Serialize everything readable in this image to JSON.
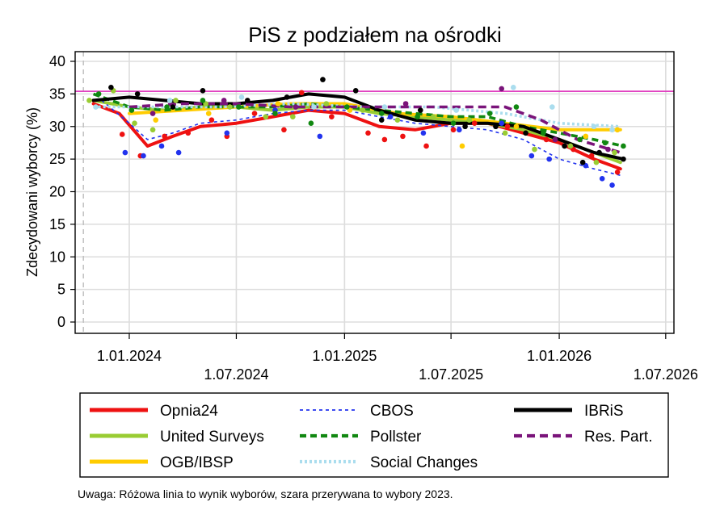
{
  "chart_data": {
    "type": "scatter",
    "title": "PiS z podziałem na ośrodki",
    "ylabel": "Zdecydowani wyborcy (%)",
    "xlabel": "",
    "ylim": [
      0,
      40
    ],
    "xlim": [
      "2023-10-01",
      "2026-07-15"
    ],
    "yticks": [
      0,
      5,
      10,
      15,
      20,
      25,
      30,
      35,
      40
    ],
    "xticks": [
      {
        "date": "2024-01-01",
        "label": "1.01.2024"
      },
      {
        "date": "2024-07-01",
        "label": "1.07.2024"
      },
      {
        "date": "2025-01-01",
        "label": "1.01.2025"
      },
      {
        "date": "2025-07-01",
        "label": "1.07.2025"
      },
      {
        "date": "2026-01-01",
        "label": "1.01.2026"
      },
      {
        "date": "2026-07-01",
        "label": "1.07.2026"
      }
    ],
    "grid": true,
    "reference_lines": {
      "election_result": 35.4,
      "election_result_color": "#e040c0",
      "election_date": "2023-10-15",
      "election_date_color": "#c0c0c0"
    },
    "legend_position": "bottom",
    "series": [
      {
        "name": "Opnia24",
        "color": "#ee1111",
        "dash": "solid",
        "trend": [
          [
            "2023-11-01",
            33.5
          ],
          [
            "2023-12-15",
            32
          ],
          [
            "2024-02-01",
            27
          ],
          [
            "2024-03-15",
            28.5
          ],
          [
            "2024-05-01",
            30
          ],
          [
            "2024-07-01",
            30.5
          ],
          [
            "2024-09-01",
            31.5
          ],
          [
            "2024-11-01",
            32.5
          ],
          [
            "2025-01-01",
            32
          ],
          [
            "2025-03-01",
            30
          ],
          [
            "2025-05-01",
            29.5
          ],
          [
            "2025-07-01",
            30.5
          ],
          [
            "2025-09-01",
            30.5
          ],
          [
            "2025-11-01",
            29
          ],
          [
            "2026-01-01",
            27.5
          ],
          [
            "2026-03-01",
            25
          ],
          [
            "2026-04-15",
            23.5
          ]
        ],
        "points": [
          [
            "2023-12-20",
            28.8
          ],
          [
            "2024-01-20",
            25.5
          ],
          [
            "2024-03-01",
            28.5
          ],
          [
            "2024-04-10",
            29
          ],
          [
            "2024-05-20",
            31
          ],
          [
            "2024-06-15",
            28.5
          ],
          [
            "2024-08-01",
            32
          ],
          [
            "2024-09-20",
            29.5
          ],
          [
            "2024-10-20",
            35.2
          ],
          [
            "2024-12-10",
            31.5
          ],
          [
            "2025-02-10",
            29
          ],
          [
            "2025-03-10",
            28
          ],
          [
            "2025-04-10",
            28.5
          ],
          [
            "2025-05-20",
            27
          ],
          [
            "2025-07-05",
            29.5
          ],
          [
            "2025-08-10",
            30.5
          ],
          [
            "2025-10-05",
            30
          ],
          [
            "2025-12-10",
            28
          ],
          [
            "2026-01-25",
            26.5
          ],
          [
            "2026-02-25",
            25.5
          ],
          [
            "2026-04-10",
            23
          ]
        ]
      },
      {
        "name": "United Surveys",
        "color": "#99cc33",
        "dash": "solid",
        "trend": [
          [
            "2023-11-01",
            34
          ],
          [
            "2024-01-01",
            33
          ],
          [
            "2024-03-01",
            32.5
          ],
          [
            "2024-05-01",
            33
          ],
          [
            "2024-07-01",
            33
          ],
          [
            "2024-09-01",
            32.5
          ],
          [
            "2024-11-01",
            33
          ],
          [
            "2025-01-01",
            33
          ],
          [
            "2025-03-01",
            32
          ],
          [
            "2025-05-01",
            31.5
          ],
          [
            "2025-07-01",
            31
          ],
          [
            "2025-09-01",
            30.5
          ],
          [
            "2025-11-01",
            29.5
          ],
          [
            "2026-01-01",
            28
          ],
          [
            "2026-03-01",
            26
          ],
          [
            "2026-04-15",
            24.5
          ]
        ],
        "points": [
          [
            "2023-10-25",
            34
          ],
          [
            "2023-12-05",
            35.5
          ],
          [
            "2024-01-10",
            30.5
          ],
          [
            "2024-02-10",
            29.5
          ],
          [
            "2024-03-20",
            34
          ],
          [
            "2024-05-10",
            33.5
          ],
          [
            "2024-06-20",
            33
          ],
          [
            "2024-08-20",
            31.5
          ],
          [
            "2024-10-05",
            31.5
          ],
          [
            "2024-12-01",
            33.5
          ],
          [
            "2025-02-01",
            32.5
          ],
          [
            "2025-04-01",
            31
          ],
          [
            "2025-06-01",
            31.5
          ],
          [
            "2025-08-01",
            31
          ],
          [
            "2025-10-01",
            29
          ],
          [
            "2025-11-20",
            26.5
          ],
          [
            "2026-01-20",
            27
          ],
          [
            "2026-03-05",
            24.5
          ],
          [
            "2026-04-05",
            26
          ]
        ]
      },
      {
        "name": "OGB/IBSP",
        "color": "#ffcc00",
        "dash": "solid",
        "trend": [
          [
            "2024-01-01",
            32
          ],
          [
            "2024-04-01",
            32.5
          ],
          [
            "2024-07-01",
            33
          ],
          [
            "2024-10-01",
            33.5
          ],
          [
            "2025-01-01",
            33.5
          ],
          [
            "2025-04-01",
            32
          ],
          [
            "2025-07-01",
            31.5
          ],
          [
            "2025-10-01",
            30.5
          ],
          [
            "2026-01-01",
            29.5
          ],
          [
            "2026-04-15",
            29.5
          ]
        ],
        "points": [
          [
            "2024-02-15",
            31
          ],
          [
            "2024-05-15",
            32
          ],
          [
            "2024-09-10",
            33.5
          ],
          [
            "2025-01-10",
            32.5
          ],
          [
            "2025-07-20",
            27
          ],
          [
            "2025-10-20",
            30
          ],
          [
            "2026-02-15",
            28.5
          ],
          [
            "2026-04-10",
            29.5
          ]
        ]
      },
      {
        "name": "CBOS",
        "color": "#2233ee",
        "dash": "4,4",
        "trend": [
          [
            "2023-11-15",
            34
          ],
          [
            "2024-01-01",
            30.5
          ],
          [
            "2024-02-01",
            28
          ],
          [
            "2024-03-15",
            29
          ],
          [
            "2024-05-01",
            30.5
          ],
          [
            "2024-07-01",
            31
          ],
          [
            "2024-09-01",
            32
          ],
          [
            "2024-11-01",
            32.5
          ],
          [
            "2025-01-01",
            32.5
          ],
          [
            "2025-03-01",
            31.5
          ],
          [
            "2025-05-01",
            30.5
          ],
          [
            "2025-07-01",
            30
          ],
          [
            "2025-09-01",
            29.5
          ],
          [
            "2025-11-01",
            28
          ],
          [
            "2026-01-01",
            25
          ],
          [
            "2026-03-01",
            23.5
          ],
          [
            "2026-04-15",
            22.5
          ]
        ],
        "points": [
          [
            "2023-12-25",
            26
          ],
          [
            "2024-01-25",
            25.5
          ],
          [
            "2024-02-25",
            27
          ],
          [
            "2024-03-25",
            26
          ],
          [
            "2024-06-15",
            29
          ],
          [
            "2024-09-05",
            32.5
          ],
          [
            "2024-11-20",
            28.5
          ],
          [
            "2025-03-20",
            31.5
          ],
          [
            "2025-05-15",
            29
          ],
          [
            "2025-07-15",
            29.5
          ],
          [
            "2025-09-25",
            30.5
          ],
          [
            "2025-11-15",
            25.5
          ],
          [
            "2025-12-15",
            25
          ],
          [
            "2026-02-15",
            24
          ],
          [
            "2026-03-15",
            22
          ],
          [
            "2026-04-01",
            21
          ]
        ]
      },
      {
        "name": "Pollster",
        "color": "#118811",
        "dash": "8,5",
        "trend": [
          [
            "2023-11-01",
            35
          ],
          [
            "2024-01-01",
            33
          ],
          [
            "2024-03-01",
            32.5
          ],
          [
            "2024-05-01",
            33
          ],
          [
            "2024-07-01",
            33
          ],
          [
            "2024-09-01",
            33
          ],
          [
            "2024-11-01",
            33.5
          ],
          [
            "2025-01-01",
            33
          ],
          [
            "2025-03-01",
            32.5
          ],
          [
            "2025-05-01",
            32
          ],
          [
            "2025-07-01",
            31.5
          ],
          [
            "2025-09-01",
            31.5
          ],
          [
            "2025-11-01",
            30
          ],
          [
            "2026-01-01",
            29
          ],
          [
            "2026-03-01",
            28
          ],
          [
            "2026-04-20",
            27
          ]
        ],
        "points": [
          [
            "2023-11-10",
            35
          ],
          [
            "2024-01-05",
            32.5
          ],
          [
            "2024-03-05",
            33
          ],
          [
            "2024-05-05",
            34
          ],
          [
            "2024-07-05",
            33
          ],
          [
            "2024-09-05",
            32
          ],
          [
            "2024-11-05",
            30.5
          ],
          [
            "2025-01-05",
            33
          ],
          [
            "2025-03-05",
            32
          ],
          [
            "2025-05-05",
            31.5
          ],
          [
            "2025-07-05",
            30.5
          ],
          [
            "2025-09-05",
            32
          ],
          [
            "2025-10-20",
            33
          ],
          [
            "2025-12-05",
            29
          ],
          [
            "2026-02-05",
            28
          ],
          [
            "2026-03-20",
            27.5
          ],
          [
            "2026-04-20",
            27
          ]
        ]
      },
      {
        "name": "Social Changes",
        "color": "#aaddee",
        "dash": "3,3",
        "trend": [
          [
            "2023-11-01",
            33
          ],
          [
            "2024-02-01",
            33
          ],
          [
            "2024-06-01",
            33
          ],
          [
            "2024-10-01",
            33.5
          ],
          [
            "2025-02-01",
            33
          ],
          [
            "2025-06-01",
            33
          ],
          [
            "2025-10-01",
            32
          ],
          [
            "2026-01-01",
            30.5
          ],
          [
            "2026-04-15",
            30
          ]
        ],
        "points": [
          [
            "2023-11-05",
            33
          ],
          [
            "2024-03-10",
            34
          ],
          [
            "2024-07-10",
            34.5
          ],
          [
            "2024-11-10",
            33
          ],
          [
            "2025-03-10",
            33
          ],
          [
            "2025-07-10",
            32.5
          ],
          [
            "2025-10-15",
            36
          ],
          [
            "2025-12-20",
            33
          ],
          [
            "2026-03-01",
            30
          ],
          [
            "2026-04-01",
            29.5
          ]
        ]
      },
      {
        "name": "IBRiS",
        "color": "#000000",
        "dash": "solid",
        "trend": [
          [
            "2023-11-01",
            34
          ],
          [
            "2024-01-01",
            34.5
          ],
          [
            "2024-03-01",
            34
          ],
          [
            "2024-05-01",
            33.5
          ],
          [
            "2024-07-01",
            33.5
          ],
          [
            "2024-09-01",
            34
          ],
          [
            "2024-11-01",
            35
          ],
          [
            "2025-01-01",
            34.5
          ],
          [
            "2025-03-01",
            32.5
          ],
          [
            "2025-05-01",
            31
          ],
          [
            "2025-07-01",
            30.5
          ],
          [
            "2025-09-01",
            30.5
          ],
          [
            "2025-11-01",
            30
          ],
          [
            "2026-01-01",
            28
          ],
          [
            "2026-03-01",
            26
          ],
          [
            "2026-04-20",
            25
          ]
        ],
        "points": [
          [
            "2023-12-01",
            36
          ],
          [
            "2024-01-15",
            35
          ],
          [
            "2024-03-15",
            33
          ],
          [
            "2024-05-05",
            35.5
          ],
          [
            "2024-07-20",
            34
          ],
          [
            "2024-09-25",
            34.5
          ],
          [
            "2024-11-25",
            37.2
          ],
          [
            "2025-01-20",
            35.5
          ],
          [
            "2025-03-05",
            31
          ],
          [
            "2025-05-10",
            32.5
          ],
          [
            "2025-07-25",
            30
          ],
          [
            "2025-09-15",
            30
          ],
          [
            "2025-11-05",
            29
          ],
          [
            "2026-01-10",
            27
          ],
          [
            "2026-02-10",
            24.5
          ],
          [
            "2026-03-10",
            26
          ],
          [
            "2026-04-20",
            25
          ]
        ]
      },
      {
        "name": "Res. Part.",
        "color": "#7a147a",
        "dash": "10,6",
        "trend": [
          [
            "2024-01-01",
            33
          ],
          [
            "2024-04-01",
            33.5
          ],
          [
            "2024-07-01",
            33.5
          ],
          [
            "2024-10-01",
            33
          ],
          [
            "2025-01-01",
            33
          ],
          [
            "2025-04-01",
            33
          ],
          [
            "2025-07-01",
            33
          ],
          [
            "2025-10-01",
            33
          ],
          [
            "2025-12-01",
            31
          ],
          [
            "2026-02-01",
            28
          ],
          [
            "2026-04-15",
            26
          ]
        ],
        "points": [
          [
            "2024-02-10",
            32
          ],
          [
            "2024-06-10",
            34
          ],
          [
            "2024-10-10",
            33
          ],
          [
            "2025-04-15",
            33.5
          ],
          [
            "2025-09-25",
            35.8
          ],
          [
            "2025-12-25",
            28
          ],
          [
            "2026-03-25",
            26.5
          ]
        ]
      }
    ]
  },
  "note": "Uwaga: Różowa linia to wynik wyborów, szara przerywana to wybory 2023."
}
